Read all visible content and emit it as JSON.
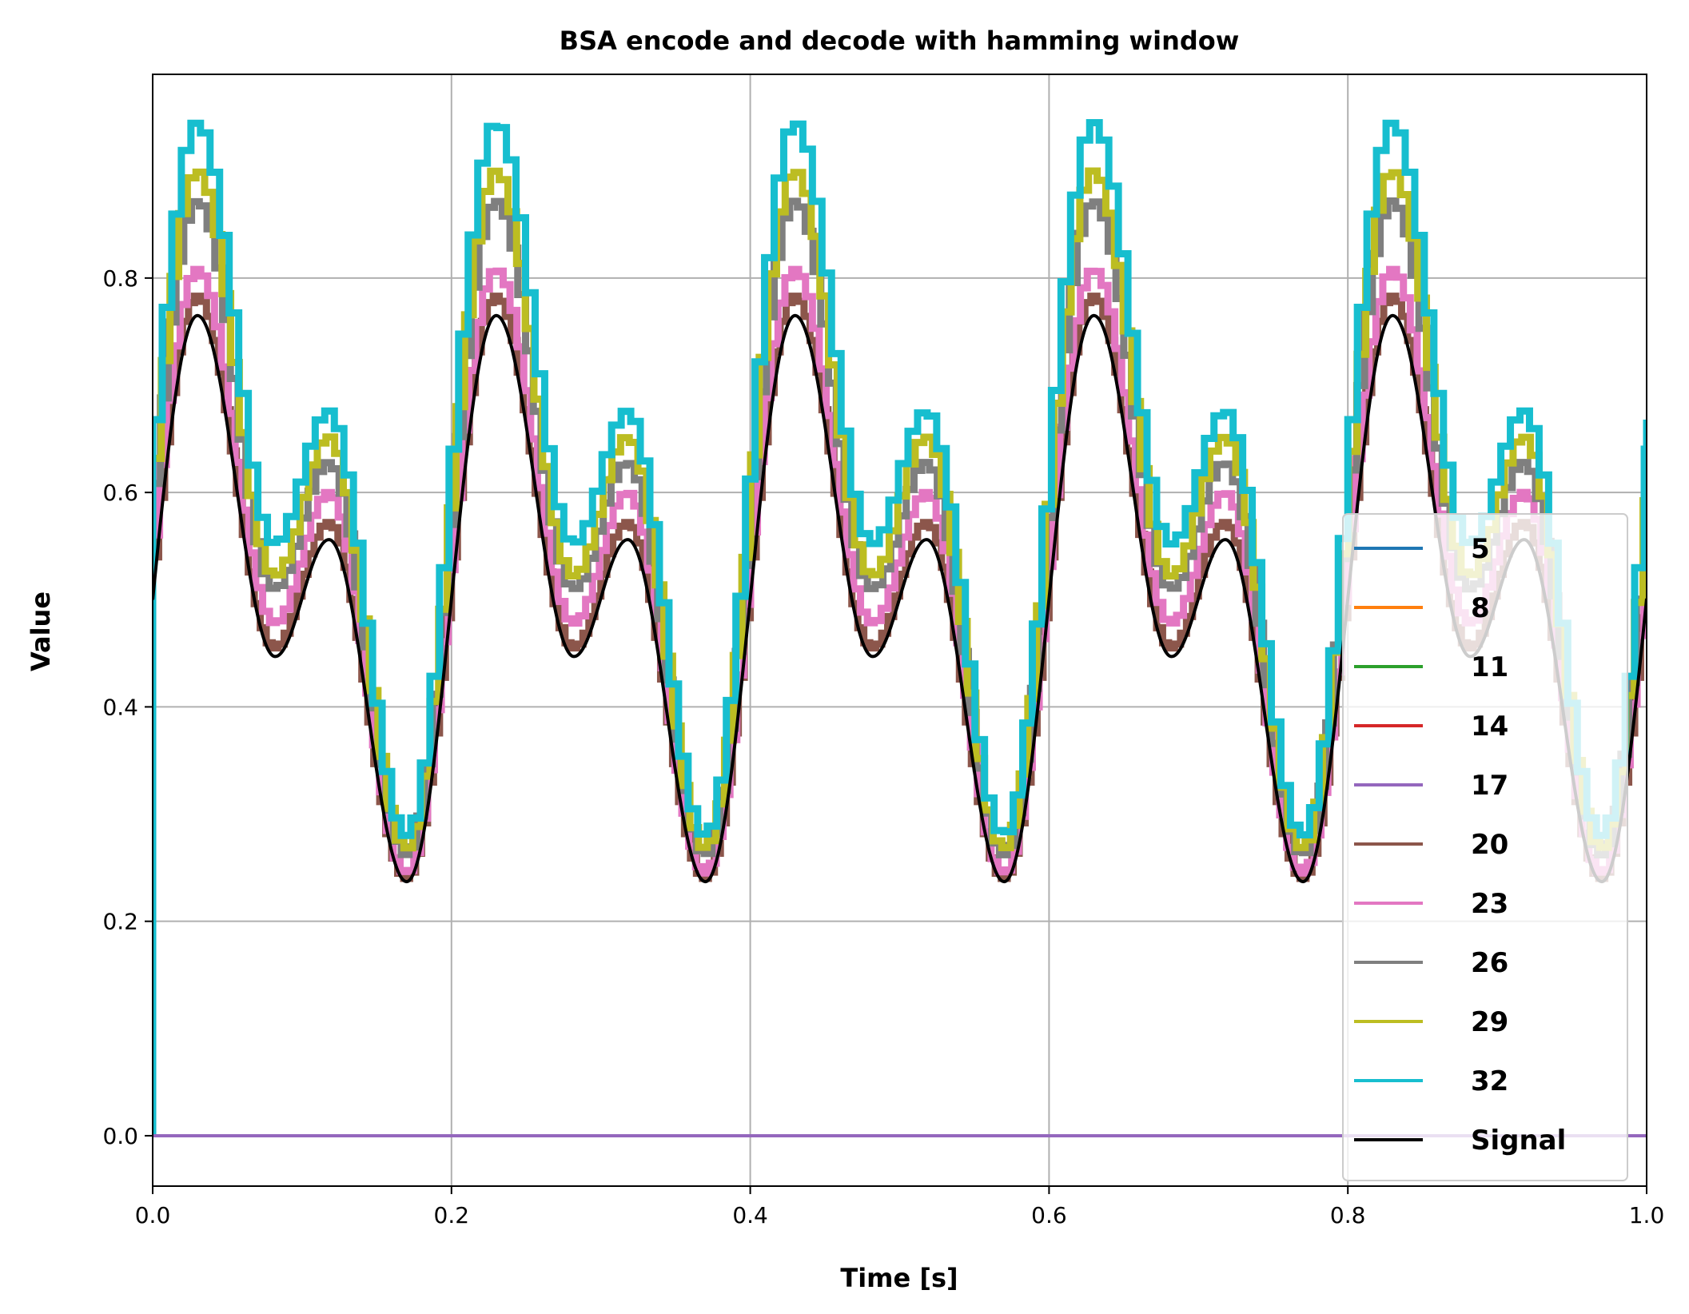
{
  "chart_data": {
    "type": "line",
    "title": "BSA encode and decode with hamming window",
    "xlabel": "Time [s]",
    "ylabel": "Value",
    "xlim": [
      0.0,
      1.0
    ],
    "ylim": [
      -0.047,
      0.99
    ],
    "grid": true,
    "legend_placement": "bottom-right",
    "x_ticks": [
      "0.0",
      "0.2",
      "0.4",
      "0.6",
      "0.8",
      "1.0"
    ],
    "y_ticks": [
      "0.0",
      "0.2",
      "0.4",
      "0.6",
      "0.8"
    ],
    "signal_model": {
      "period": 0.2,
      "peak_major": {
        "x": 0.03,
        "y": 0.765
      },
      "trough_minor": {
        "x": 0.082,
        "y": 0.447
      },
      "peak_minor": {
        "x": 0.118,
        "y": 0.556
      },
      "trough_major": {
        "x": 0.17,
        "y": 0.237
      }
    },
    "series": [
      {
        "name": "5",
        "color": "#1f77b4",
        "flat": true,
        "value": 0.0
      },
      {
        "name": "8",
        "color": "#ff7f0e",
        "flat": true,
        "value": 0.0
      },
      {
        "name": "11",
        "color": "#2ca02c",
        "flat": true,
        "value": 0.0
      },
      {
        "name": "14",
        "color": "#d62728",
        "flat": true,
        "value": 0.0
      },
      {
        "name": "17",
        "color": "#9467bd",
        "flat": true,
        "value": 0.0
      },
      {
        "name": "20",
        "color": "#8c564b",
        "flat": false,
        "peak_major": 0.783,
        "trough_minor": 0.455,
        "peak_minor": 0.572,
        "trough_major": 0.24
      },
      {
        "name": "23",
        "color": "#e377c2",
        "flat": false,
        "peak_major": 0.808,
        "trough_minor": 0.478,
        "peak_minor": 0.6,
        "trough_major": 0.245
      },
      {
        "name": "26",
        "color": "#7f7f7f",
        "flat": false,
        "peak_major": 0.872,
        "trough_minor": 0.51,
        "peak_minor": 0.628,
        "trough_major": 0.262
      },
      {
        "name": "29",
        "color": "#bcbd22",
        "flat": false,
        "peak_major": 0.9,
        "trough_minor": 0.522,
        "peak_minor": 0.652,
        "trough_major": 0.268
      },
      {
        "name": "32",
        "color": "#17becf",
        "flat": false,
        "peak_major": 0.945,
        "trough_minor": 0.552,
        "peak_minor": 0.676,
        "trough_major": 0.28
      },
      {
        "name": "Signal",
        "color": "#000000",
        "flat": false,
        "smooth": true
      }
    ]
  }
}
